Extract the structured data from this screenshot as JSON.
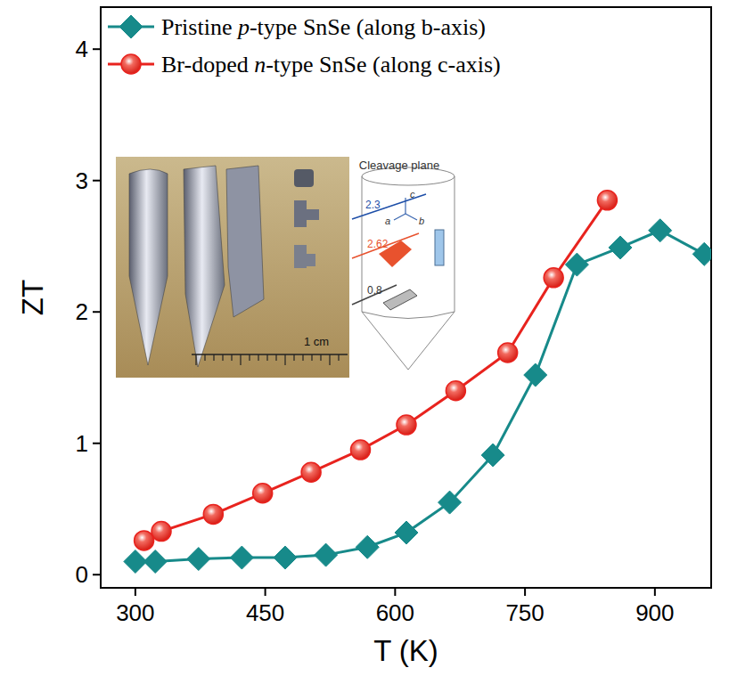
{
  "chart_data": {
    "type": "line",
    "x_label": "T (K)",
    "y_label": "ZT",
    "xlim": [
      260,
      965
    ],
    "xticks": [
      300,
      450,
      600,
      750,
      900
    ],
    "ylim": [
      -0.1,
      4.32
    ],
    "yticks": [
      0,
      1,
      2,
      3,
      4
    ],
    "grid": false,
    "legend": "upper left",
    "series": [
      {
        "name": "Pristine p-type SnSe (along b-axis)",
        "color": "#178a8a",
        "marker": "diamond",
        "line_style": "solid",
        "x": [
          300,
          323,
          373,
          423,
          473,
          520,
          568,
          613,
          663,
          713,
          762,
          810,
          860,
          906,
          957
        ],
        "values": [
          0.1,
          0.1,
          0.12,
          0.13,
          0.13,
          0.15,
          0.21,
          0.32,
          0.55,
          0.91,
          1.52,
          2.36,
          2.49,
          2.62,
          2.44
        ]
      },
      {
        "name": "Br-doped n-type SnSe (along c-axis)",
        "color": "#e8231e",
        "marker": "circle",
        "line_style": "solid",
        "x": [
          310,
          330,
          390,
          447,
          503,
          560,
          613,
          670,
          730,
          783,
          845
        ],
        "values": [
          0.26,
          0.33,
          0.46,
          0.62,
          0.78,
          0.95,
          1.14,
          1.4,
          1.69,
          2.26,
          2.85
        ]
      }
    ],
    "annotations": [
      "Cleavage plane",
      "c",
      "a",
      "b",
      "2.3",
      "2.62",
      "0.8",
      "1 cm"
    ]
  }
}
